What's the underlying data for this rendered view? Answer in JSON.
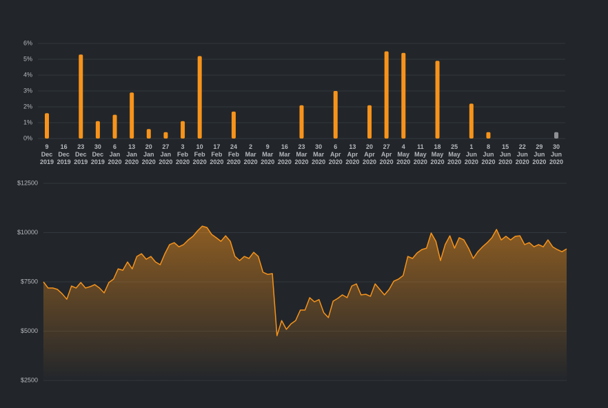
{
  "chart_data": [
    {
      "type": "bar",
      "categories": [
        "9 Dec 2019",
        "16 Dec 2019",
        "23 Dec 2019",
        "30 Dec 2019",
        "6 Jan 2020",
        "13 Jan 2020",
        "20 Jan 2020",
        "27 Jan 2020",
        "3 Feb 2020",
        "10 Feb 2020",
        "17 Feb 2020",
        "24 Feb 2020",
        "2 Mar 2020",
        "9 Mar 2020",
        "16 Mar 2020",
        "23 Mar 2020",
        "30 Mar 2020",
        "6 Apr 2020",
        "13 Apr 2020",
        "20 Apr 2020",
        "27 Apr 2020",
        "4 May 2020",
        "11 May 2020",
        "18 May 2020",
        "25 May 2020",
        "1 Jun 2020",
        "8 Jun 2020",
        "15 Jun 2020",
        "22 Jun 2020",
        "29 Jun 2020",
        "30 Jun 2020"
      ],
      "values": [
        1.6,
        0,
        5.3,
        1.1,
        1.5,
        2.9,
        0.6,
        0.4,
        1.1,
        5.2,
        0,
        1.7,
        0,
        0,
        0,
        2.1,
        0,
        3.0,
        0,
        2.1,
        5.5,
        5.4,
        0,
        4.9,
        0,
        2.2,
        0.4,
        0,
        0,
        0,
        0.4
      ],
      "colors": [
        "#f7931a",
        "#f7931a",
        "#f7931a",
        "#f7931a",
        "#f7931a",
        "#f7931a",
        "#f7931a",
        "#f7931a",
        "#f7931a",
        "#f7931a",
        "#f7931a",
        "#f7931a",
        "#f7931a",
        "#f7931a",
        "#f7931a",
        "#f7931a",
        "#f7931a",
        "#f7931a",
        "#f7931a",
        "#f7931a",
        "#f7931a",
        "#f7931a",
        "#f7931a",
        "#f7931a",
        "#f7931a",
        "#f7931a",
        "#f7931a",
        "#f7931a",
        "#f7931a",
        "#f7931a",
        "#8e9094"
      ],
      "ylim": [
        0,
        6
      ],
      "yticks": [
        {
          "value": 0,
          "label": "0%"
        },
        {
          "value": 1,
          "label": "1%"
        },
        {
          "value": 2,
          "label": "2%"
        },
        {
          "value": 3,
          "label": "3%"
        },
        {
          "value": 4,
          "label": "4%"
        },
        {
          "value": 5,
          "label": "5%"
        },
        {
          "value": 6,
          "label": "6%"
        }
      ],
      "grid": true
    },
    {
      "type": "area",
      "color": "#f7931a",
      "values": [
        7500,
        7190,
        7190,
        7120,
        6900,
        6620,
        7290,
        7190,
        7470,
        7190,
        7260,
        7360,
        7190,
        6940,
        7470,
        7640,
        8160,
        8090,
        8510,
        8160,
        8790,
        8930,
        8650,
        8790,
        8510,
        8370,
        8930,
        9390,
        9490,
        9280,
        9390,
        9630,
        9810,
        10090,
        10330,
        10260,
        9910,
        9740,
        9560,
        9840,
        9560,
        8790,
        8580,
        8790,
        8690,
        9000,
        8790,
        7990,
        7880,
        7920,
        4770,
        5540,
        5090,
        5370,
        5540,
        6070,
        6070,
        6700,
        6490,
        6600,
        5940,
        5690,
        6520,
        6660,
        6840,
        6700,
        7290,
        7400,
        6840,
        6870,
        6770,
        7400,
        7120,
        6840,
        7120,
        7540,
        7640,
        7820,
        8790,
        8690,
        8970,
        9140,
        9210,
        9980,
        9560,
        8580,
        9390,
        9840,
        9210,
        9740,
        9630,
        9210,
        8690,
        9030,
        9280,
        9490,
        9740,
        10160,
        9630,
        9810,
        9630,
        9810,
        9840,
        9390,
        9490,
        9280,
        9390,
        9280,
        9630,
        9280,
        9140,
        9030,
        9170
      ],
      "ylim": [
        2500,
        12500
      ],
      "yticks": [
        {
          "value": 2500,
          "label": "$2500"
        },
        {
          "value": 5000,
          "label": "$5000"
        },
        {
          "value": 7500,
          "label": "$7500"
        },
        {
          "value": 10000,
          "label": "$10000"
        },
        {
          "value": 12500,
          "label": "$12500"
        }
      ],
      "grid": true
    }
  ]
}
